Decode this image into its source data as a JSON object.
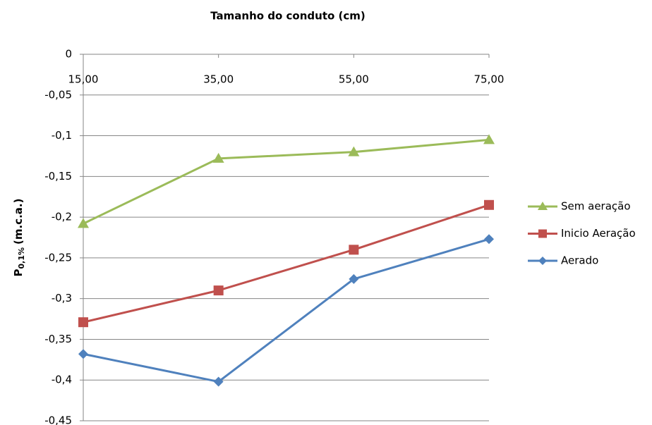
{
  "chart_data": {
    "type": "line",
    "title": "Tamanho do conduto (cm)",
    "y_label": {
      "main": "P",
      "subscript": "0,1%",
      "unit": "(m.c.a.)"
    },
    "categories": [
      "15,00",
      "35,00",
      "55,00",
      "75,00"
    ],
    "ylim": [
      -0.45,
      0
    ],
    "yticks": [
      0,
      {
        "value": -0.05,
        "label": "-0,05"
      },
      {
        "value": -0.1,
        "label": "-0,1"
      },
      {
        "value": -0.15,
        "label": "-0,15"
      },
      {
        "value": -0.2,
        "label": "-0,2"
      },
      {
        "value": -0.25,
        "label": "-0,25"
      },
      {
        "value": -0.3,
        "label": "-0,3"
      },
      {
        "value": -0.35,
        "label": "-0,35"
      },
      {
        "value": -0.4,
        "label": "-0,4"
      },
      {
        "value": -0.45,
        "label": "-0,45"
      }
    ],
    "grid": true,
    "legend": "right",
    "series": [
      {
        "name": "Sem aeração",
        "color": "#9bbb59",
        "marker": "triangle",
        "values": [
          -0.208,
          -0.128,
          -0.12,
          -0.105
        ]
      },
      {
        "name": "Inicio Aeração",
        "color": "#c0504d",
        "marker": "square",
        "values": [
          -0.329,
          -0.29,
          -0.24,
          -0.185
        ]
      },
      {
        "name": "Aerado",
        "color": "#4f81bd",
        "marker": "diamond",
        "values": [
          -0.368,
          -0.402,
          -0.276,
          -0.227
        ]
      }
    ]
  }
}
